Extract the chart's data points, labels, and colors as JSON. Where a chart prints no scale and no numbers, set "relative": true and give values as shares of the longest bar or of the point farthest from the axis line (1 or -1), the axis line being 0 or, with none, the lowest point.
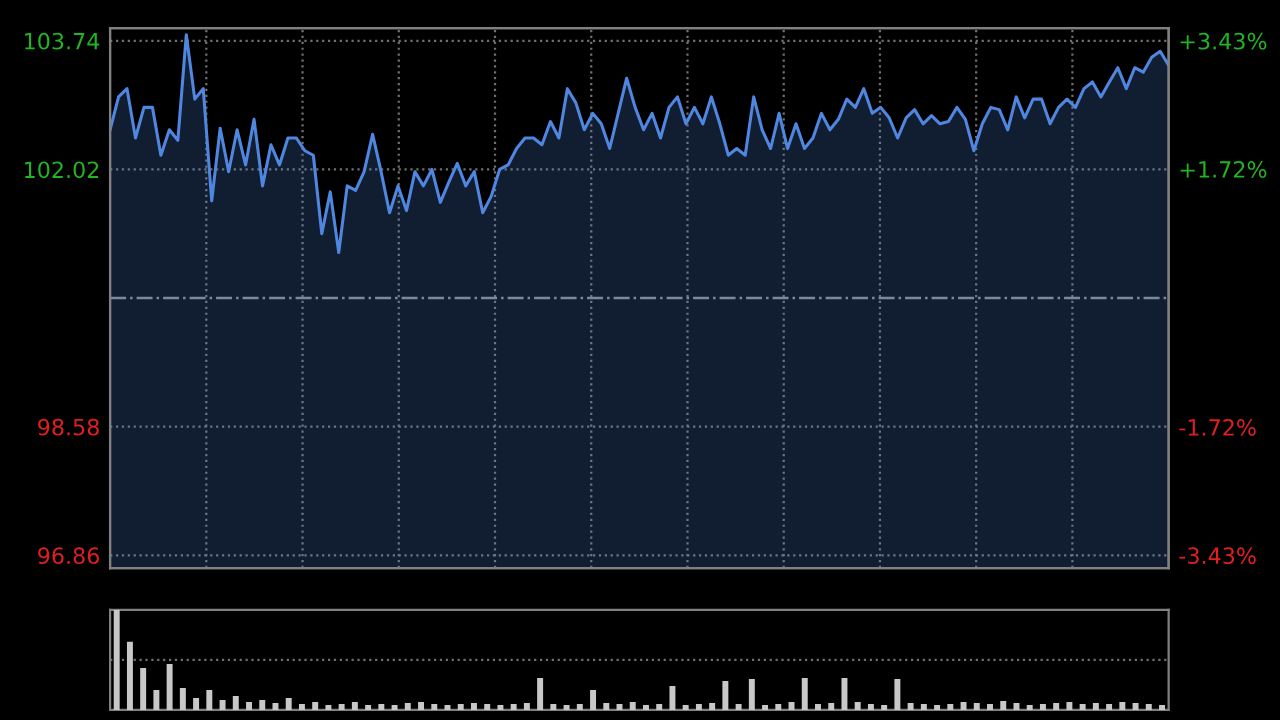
{
  "chart_data": [
    {
      "type": "area",
      "categories": [
        null,
        null,
        null,
        null,
        null,
        null,
        null,
        null,
        null,
        null,
        null,
        null,
        null,
        null,
        null,
        null,
        null,
        null,
        null,
        null,
        null,
        null,
        null,
        null,
        null,
        null,
        null,
        null,
        null,
        null,
        null,
        null,
        null,
        null,
        null,
        null,
        null,
        null,
        null,
        null,
        null,
        null,
        null,
        null,
        null,
        null,
        null,
        null,
        null,
        null,
        null,
        null,
        null,
        null,
        null,
        null,
        null,
        null,
        null,
        null,
        null,
        null,
        null,
        null,
        null,
        null,
        null,
        null,
        null,
        null,
        null,
        null,
        null,
        null,
        null,
        null,
        null,
        null,
        null,
        null,
        null,
        null,
        null,
        null,
        null,
        null,
        null,
        null,
        null,
        null,
        null,
        null,
        null,
        null,
        null,
        null,
        null,
        null,
        null,
        null,
        null,
        null,
        null,
        null,
        null,
        null,
        null,
        null,
        null,
        null,
        null,
        null,
        null,
        null,
        null,
        null,
        null,
        null,
        null,
        null,
        null,
        null,
        null,
        null,
        null,
        null
      ],
      "series": [
        {
          "color": "#4f86e0",
          "values": [
            102.55,
            102.99,
            103.1,
            102.44,
            102.85,
            102.85,
            102.21,
            102.55,
            102.41,
            103.82,
            102.96,
            103.1,
            101.6,
            102.57,
            101.99,
            102.55,
            102.08,
            102.69,
            101.8,
            102.35,
            102.08,
            102.44,
            102.44,
            102.27,
            102.21,
            101.16,
            101.72,
            100.91,
            101.8,
            101.74,
            101.99,
            102.49,
            101.99,
            101.44,
            101.8,
            101.47,
            101.99,
            101.8,
            102.02,
            101.58,
            101.85,
            102.1,
            101.8,
            101.99,
            101.44,
            101.66,
            102.02,
            102.08,
            102.3,
            102.44,
            102.44,
            102.35,
            102.66,
            102.44,
            103.1,
            102.91,
            102.55,
            102.77,
            102.63,
            102.3,
            102.77,
            103.24,
            102.85,
            102.55,
            102.77,
            102.44,
            102.85,
            102.99,
            102.63,
            102.85,
            102.63,
            102.99,
            102.63,
            102.21,
            102.3,
            102.21,
            102.99,
            102.55,
            102.3,
            102.77,
            102.3,
            102.63,
            102.3,
            102.44,
            102.77,
            102.55,
            102.69,
            102.96,
            102.85,
            103.1,
            102.77,
            102.85,
            102.71,
            102.44,
            102.71,
            102.82,
            102.63,
            102.74,
            102.63,
            102.66,
            102.85,
            102.69,
            102.27,
            102.63,
            102.85,
            102.82,
            102.55,
            102.99,
            102.71,
            102.96,
            102.96,
            102.63,
            102.85,
            102.96,
            102.85,
            103.1,
            103.19,
            102.99,
            103.19,
            103.38,
            103.1,
            103.38,
            103.32,
            103.52,
            103.6,
            103.41
          ]
        }
      ],
      "ylim": [
        96.69,
        103.91
      ],
      "yticks": [
        96.86,
        98.58,
        102.02,
        103.74
      ],
      "y2lim": [
        -3.6,
        3.6
      ],
      "y2ticks": [
        {
          "value": -3.43,
          "label": "-3.43%"
        },
        {
          "value": -1.72,
          "label": "-1.72%"
        },
        {
          "value": 1.72,
          "label": "+1.72%"
        },
        {
          "value": 3.43,
          "label": "+3.43%"
        }
      ],
      "ref_lines": [
        {
          "axis": "y",
          "value": 100.3,
          "label": null,
          "color": "#8a8a8a",
          "line_style": "dashdot"
        }
      ],
      "grid": true,
      "tick_labels": "y"
    },
    {
      "type": "bar",
      "relative": true,
      "color": "#c8c8c8",
      "tick_labels": false,
      "ref_lines": [
        {
          "axis": "y",
          "value": 0.5,
          "label": null,
          "color": "#707070",
          "line_style": "dotted"
        }
      ],
      "categories": [
        null,
        null,
        null,
        null,
        null,
        null,
        null,
        null,
        null,
        null,
        null,
        null,
        null,
        null,
        null,
        null,
        null,
        null,
        null,
        null,
        null,
        null,
        null,
        null,
        null,
        null,
        null,
        null,
        null,
        null,
        null,
        null,
        null,
        null,
        null,
        null,
        null,
        null,
        null,
        null,
        null,
        null,
        null,
        null,
        null,
        null,
        null,
        null,
        null,
        null,
        null,
        null,
        null,
        null,
        null,
        null,
        null,
        null,
        null,
        null,
        null,
        null,
        null,
        null,
        null,
        null,
        null,
        null,
        null,
        null,
        null,
        null,
        null,
        null,
        null,
        null,
        null,
        null,
        null,
        null
      ],
      "values": [
        1.0,
        0.68,
        0.42,
        0.2,
        0.46,
        0.22,
        0.12,
        0.2,
        0.1,
        0.14,
        0.08,
        0.1,
        0.07,
        0.12,
        0.06,
        0.08,
        0.05,
        0.06,
        0.08,
        0.05,
        0.06,
        0.05,
        0.07,
        0.08,
        0.06,
        0.05,
        0.06,
        0.07,
        0.06,
        0.05,
        0.06,
        0.07,
        0.32,
        0.06,
        0.05,
        0.06,
        0.2,
        0.07,
        0.06,
        0.08,
        0.05,
        0.06,
        0.24,
        0.05,
        0.06,
        0.07,
        0.29,
        0.06,
        0.31,
        0.05,
        0.06,
        0.08,
        0.32,
        0.06,
        0.07,
        0.32,
        0.08,
        0.06,
        0.05,
        0.31,
        0.07,
        0.06,
        0.05,
        0.06,
        0.08,
        0.07,
        0.06,
        0.09,
        0.07,
        0.05,
        0.06,
        0.07,
        0.08,
        0.06,
        0.07,
        0.06,
        0.08,
        0.07,
        0.06,
        0.05
      ]
    }
  ]
}
